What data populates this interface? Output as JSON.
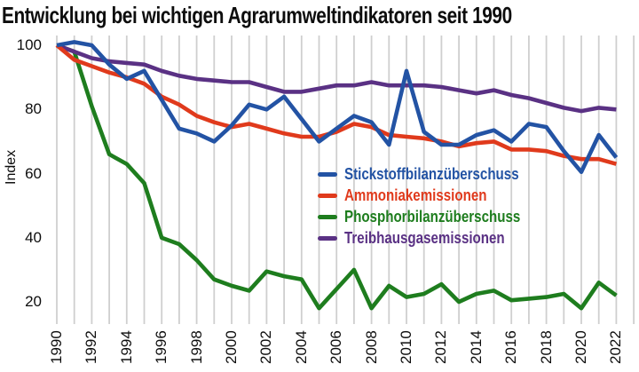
{
  "title": "Entwicklung bei wichtigen Agrarumweltindikatoren seit 1990",
  "y_axis": {
    "label": "Index",
    "tick_labels": [
      "100",
      "80",
      "60",
      "40",
      "20"
    ],
    "tick_values": [
      100,
      80,
      60,
      40,
      20
    ]
  },
  "x_axis": {
    "tick_labels": [
      "1990",
      "1992",
      "1994",
      "1996",
      "1998",
      "2000",
      "2002",
      "2004",
      "2006",
      "2008",
      "2010",
      "2012",
      "2014",
      "2016",
      "2018",
      "2020",
      "2022"
    ]
  },
  "legend": {
    "items": [
      {
        "label": "Stickstoffbilanzüberschuss",
        "color": "#2353a4"
      },
      {
        "label": "Ammoniakemissionen",
        "color": "#e03a1c"
      },
      {
        "label": "Phosphorbilanzüberschuss",
        "color": "#1e7d1e"
      },
      {
        "label": "Treibhausgasemissionen",
        "color": "#5a3184"
      }
    ]
  },
  "colors": {
    "gridline": "#cfcfcf",
    "text": "#0d0d0d",
    "background": "#ffffff"
  },
  "chart_data": {
    "type": "line",
    "title": "Entwicklung bei wichtigen Agrarumweltindikatoren seit 1990",
    "xlabel": "",
    "ylabel": "Index",
    "ylim": [
      13,
      103
    ],
    "xlim": [
      1990,
      2023.2
    ],
    "grid": "vertical-only, one gridline per year",
    "legend_position": "inside center-right",
    "x_tick_step": 2,
    "index_base": "1990 = 100",
    "x": [
      1990,
      1991,
      1992,
      1993,
      1994,
      1995,
      1996,
      1997,
      1998,
      1999,
      2000,
      2001,
      2002,
      2003,
      2004,
      2005,
      2006,
      2007,
      2008,
      2009,
      2010,
      2011,
      2012,
      2013,
      2014,
      2015,
      2016,
      2017,
      2018,
      2019,
      2020,
      2021,
      2022
    ],
    "series": [
      {
        "name": "Stickstoffbilanzüberschuss",
        "color": "#2353a4",
        "values": [
          100,
          101,
          100,
          94,
          89.5,
          92,
          83,
          74,
          72.5,
          70,
          75,
          81.5,
          80,
          84,
          77,
          70,
          74,
          78,
          76,
          69,
          92,
          73,
          69,
          69,
          72,
          73.5,
          70,
          75.5,
          74.5,
          67,
          60.5,
          72,
          65
        ]
      },
      {
        "name": "Ammoniakemissionen",
        "color": "#e03a1c",
        "values": [
          100,
          95.5,
          93.5,
          91.5,
          90,
          88,
          84,
          81.5,
          78,
          76,
          74.5,
          75.5,
          74,
          72.5,
          71.5,
          71.5,
          73,
          75.5,
          74.5,
          72,
          71.5,
          71,
          70,
          68.5,
          69.5,
          70,
          67.5,
          67.5,
          67,
          65.5,
          64.5,
          64.5,
          63
        ]
      },
      {
        "name": "Phosphorbilanzüberschuss",
        "color": "#1e7d1e",
        "values": [
          100,
          98,
          81,
          66,
          63,
          57,
          40,
          38,
          33,
          27,
          25,
          23.5,
          29.5,
          28,
          27,
          18,
          24,
          30,
          18,
          25,
          21.5,
          22.5,
          25.5,
          20,
          22.5,
          23.5,
          20.5,
          21,
          21.5,
          22.5,
          18,
          26,
          22
        ]
      },
      {
        "name": "Treibhausgasemissionen",
        "color": "#5a3184",
        "values": [
          100,
          98,
          96,
          95,
          94.5,
          94,
          92,
          90.5,
          89.5,
          89,
          88.5,
          88.5,
          87,
          85.5,
          85.5,
          86.5,
          87.5,
          87.5,
          88.5,
          87.5,
          87.5,
          87.5,
          87,
          86,
          85,
          86,
          84.5,
          83.5,
          82,
          80.5,
          79.5,
          80.5,
          80
        ]
      }
    ]
  }
}
